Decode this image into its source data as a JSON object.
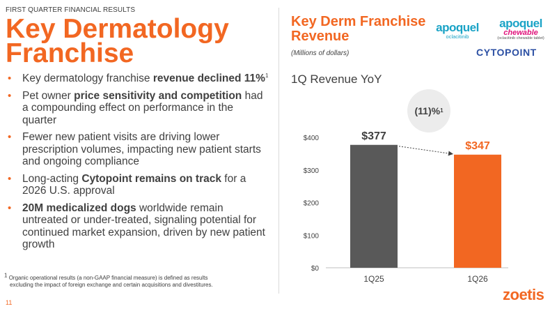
{
  "slide": {
    "section_label": "FIRST QUARTER FINANCIAL RESULTS",
    "title": "Key Dermatology Franchise",
    "page_number": "11",
    "accent_color": "#f26722",
    "bar_colors": [
      "#595959",
      "#f26722"
    ]
  },
  "bullets": [
    {
      "parts": [
        {
          "text": "Key dermatology franchise "
        },
        {
          "text": "revenue declined 11%",
          "bold": true
        },
        {
          "text": "1",
          "sup": true
        }
      ]
    },
    {
      "parts": [
        {
          "text": "Pet owner "
        },
        {
          "text": "price sensitivity and competition",
          "bold": true
        },
        {
          "text": " had a compounding effect on performance in the quarter"
        }
      ]
    },
    {
      "parts": [
        {
          "text": "Fewer new patient visits are driving lower prescription volumes, impacting new patient starts and ongoing compliance"
        }
      ]
    },
    {
      "parts": [
        {
          "text": "Long-acting "
        },
        {
          "text": "Cytopoint remains on track",
          "bold": true
        },
        {
          "text": " for a 2026 U.S. approval"
        }
      ]
    },
    {
      "parts": [
        {
          "text": "20M medicalized dogs",
          "bold": true
        },
        {
          "text": " worldwide remain untreated or under-treated, signaling potential for continued market expansion, driven by new patient growth"
        }
      ]
    }
  ],
  "footnote": {
    "marker": "1",
    "line1": "Organic operational results (a non-GAAP financial measure) is defined as results",
    "line2": "excluding the impact of foreign exchange and certain acquisitions and divestitures."
  },
  "right_panel": {
    "title": "Key Derm Franchise Revenue",
    "subtitle": "(Millions of dollars)",
    "chart_heading": "1Q Revenue YoY",
    "change_badge": "(11)%",
    "change_badge_sup": "1"
  },
  "logos": {
    "apoquel": "apoquel",
    "apoquel_sub": "oclacitinib",
    "apoquel_chewable": "apoquel",
    "chewable": "chewable",
    "chewable_sub": "(oclacitinib chewable tablet)",
    "cytopoint": "CYTOPOINT",
    "zoetis": "zoetis"
  },
  "chart_data": {
    "type": "bar",
    "title": "1Q Revenue YoY",
    "ylabel": "",
    "xlabel": "",
    "categories": [
      "1Q25",
      "1Q26"
    ],
    "values": [
      377,
      347
    ],
    "data_labels": [
      "$377",
      "$347"
    ],
    "ylim": [
      0,
      400
    ],
    "yticks": [
      0,
      100,
      200,
      300,
      400
    ],
    "ytick_labels": [
      "$0",
      "$100",
      "$200",
      "$300",
      "$400"
    ],
    "grid": false,
    "legend": "none"
  }
}
